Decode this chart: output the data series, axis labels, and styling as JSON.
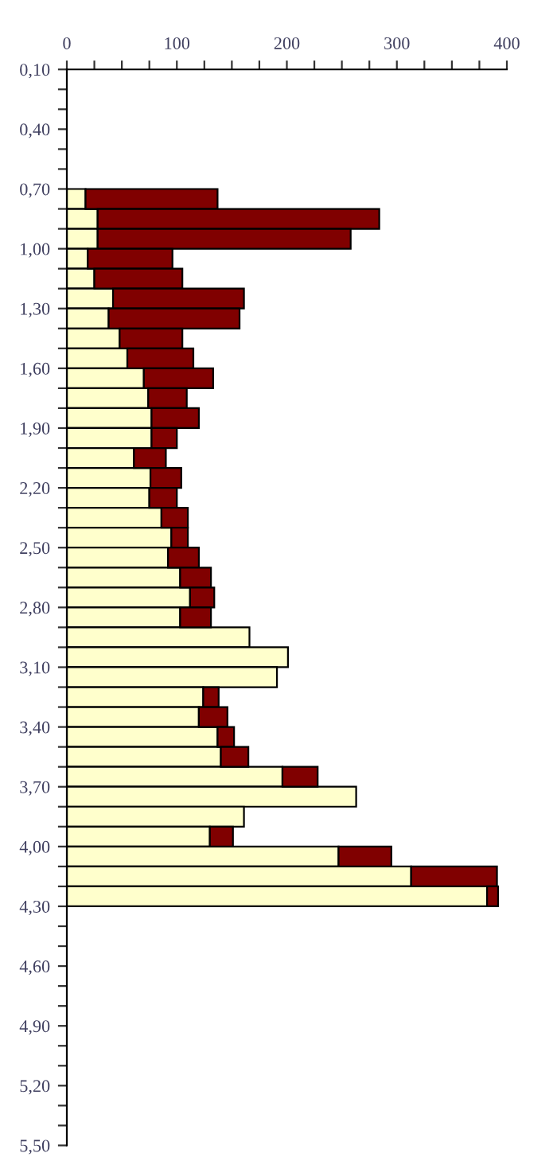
{
  "chart_data": {
    "type": "bar",
    "orientation": "horizontal",
    "stacked": true,
    "x": [
      0.75,
      0.85,
      0.95,
      1.05,
      1.15,
      1.25,
      1.35,
      1.45,
      1.55,
      1.65,
      1.75,
      1.85,
      1.95,
      2.05,
      2.15,
      2.25,
      2.35,
      2.45,
      2.55,
      2.65,
      2.75,
      2.85,
      2.95,
      3.05,
      3.15,
      3.25,
      3.35,
      3.45,
      3.55,
      3.65,
      3.75,
      3.85,
      3.95,
      4.05,
      4.15,
      4.25
    ],
    "series": [
      {
        "color": "#ffffcc",
        "values": [
          17,
          28,
          28,
          19,
          25,
          42,
          38,
          48,
          55,
          70,
          74,
          77,
          77,
          61,
          76,
          75,
          86,
          95,
          92,
          103,
          112,
          103,
          166,
          201,
          191,
          124,
          120,
          137,
          140,
          196,
          263,
          161,
          130,
          247,
          313,
          382
        ]
      },
      {
        "color": "#800000",
        "values": [
          120,
          256,
          230,
          77,
          80,
          119,
          119,
          57,
          60,
          63,
          35,
          43,
          23,
          29,
          28,
          25,
          24,
          15,
          28,
          28,
          22,
          28,
          0,
          0,
          0,
          14,
          26,
          15,
          25,
          32,
          0,
          0,
          21,
          48,
          78,
          10
        ]
      }
    ],
    "xlim": [
      0,
      400
    ],
    "xticks": [
      0,
      {
        "value": 25,
        "label": null
      },
      {
        "value": 50,
        "label": null
      },
      {
        "value": 75,
        "label": null
      },
      100,
      {
        "value": 125,
        "label": null
      },
      {
        "value": 150,
        "label": null
      },
      {
        "value": 175,
        "label": null
      },
      200,
      {
        "value": 225,
        "label": null
      },
      {
        "value": 250,
        "label": null
      },
      {
        "value": 275,
        "label": null
      },
      300,
      {
        "value": 325,
        "label": null
      },
      {
        "value": 350,
        "label": null
      },
      {
        "value": 375,
        "label": null
      },
      400
    ],
    "ylim": [
      5.5,
      0.1
    ],
    "yticks": [
      {
        "value": 0.1,
        "label": "0,10"
      },
      {
        "value": 0.2,
        "label": null
      },
      {
        "value": 0.3,
        "label": null
      },
      {
        "value": 0.4,
        "label": "0,40"
      },
      {
        "value": 0.5,
        "label": null
      },
      {
        "value": 0.6,
        "label": null
      },
      {
        "value": 0.7,
        "label": "0,70"
      },
      {
        "value": 0.8,
        "label": null
      },
      {
        "value": 0.9,
        "label": null
      },
      {
        "value": 1.0,
        "label": "1,00"
      },
      {
        "value": 1.1,
        "label": null
      },
      {
        "value": 1.2,
        "label": null
      },
      {
        "value": 1.3,
        "label": "1,30"
      },
      {
        "value": 1.4,
        "label": null
      },
      {
        "value": 1.5,
        "label": null
      },
      {
        "value": 1.6,
        "label": "1,60"
      },
      {
        "value": 1.7,
        "label": null
      },
      {
        "value": 1.8,
        "label": null
      },
      {
        "value": 1.9,
        "label": "1,90"
      },
      {
        "value": 2.0,
        "label": null
      },
      {
        "value": 2.1,
        "label": null
      },
      {
        "value": 2.2,
        "label": "2,20"
      },
      {
        "value": 2.3,
        "label": null
      },
      {
        "value": 2.4,
        "label": null
      },
      {
        "value": 2.5,
        "label": "2,50"
      },
      {
        "value": 2.6,
        "label": null
      },
      {
        "value": 2.7,
        "label": null
      },
      {
        "value": 2.8,
        "label": "2,80"
      },
      {
        "value": 2.9,
        "label": null
      },
      {
        "value": 3.0,
        "label": null
      },
      {
        "value": 3.1,
        "label": "3,10"
      },
      {
        "value": 3.2,
        "label": null
      },
      {
        "value": 3.3,
        "label": null
      },
      {
        "value": 3.4,
        "label": "3,40"
      },
      {
        "value": 3.5,
        "label": null
      },
      {
        "value": 3.6,
        "label": null
      },
      {
        "value": 3.7,
        "label": "3,70"
      },
      {
        "value": 3.8,
        "label": null
      },
      {
        "value": 3.9,
        "label": null
      },
      {
        "value": 4.0,
        "label": "4,00"
      },
      {
        "value": 4.1,
        "label": null
      },
      {
        "value": 4.2,
        "label": null
      },
      {
        "value": 4.3,
        "label": "4,30"
      },
      {
        "value": 4.4,
        "label": null
      },
      {
        "value": 4.5,
        "label": null
      },
      {
        "value": 4.6,
        "label": "4,60"
      },
      {
        "value": 4.7,
        "label": null
      },
      {
        "value": 4.8,
        "label": null
      },
      {
        "value": 4.9,
        "label": "4,90"
      },
      {
        "value": 5.0,
        "label": null
      },
      {
        "value": 5.1,
        "label": null
      },
      {
        "value": 5.2,
        "label": "5,20"
      },
      {
        "value": 5.3,
        "label": null
      },
      {
        "value": 5.4,
        "label": null
      },
      {
        "value": 5.5,
        "label": "5,50"
      }
    ],
    "grid": false,
    "legend": false
  }
}
